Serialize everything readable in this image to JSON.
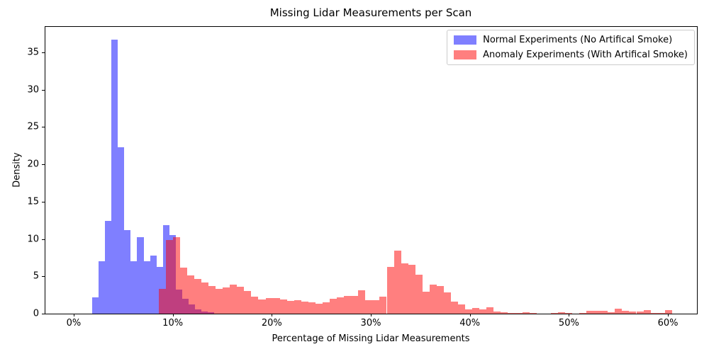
{
  "title": "Missing Lidar Measurements per Scan",
  "xlabel": "Percentage of Missing Lidar Measurements",
  "ylabel": "Density",
  "legend": {
    "items": [
      {
        "label": "Normal Experiments (No Artifical Smoke)",
        "color": "rgba(0,0,255,0.5)"
      },
      {
        "label": "Anomaly Experiments (With Artifical Smoke)",
        "color": "rgba(255,0,0,0.5)"
      }
    ]
  },
  "chart_data": {
    "type": "bar",
    "subtype": "overlapping-density-histogram",
    "title": "Missing Lidar Measurements per Scan",
    "xlabel": "Percentage of Missing Lidar Measurements",
    "ylabel": "Density",
    "xlim": [
      -2.86,
      62.93
    ],
    "ylim": [
      0,
      38.4
    ],
    "grid": false,
    "legend_position": "upper right",
    "x_tick_values": [
      0,
      10,
      20,
      30,
      40,
      50,
      60
    ],
    "x_tick_labels": [
      "0%",
      "10%",
      "20%",
      "30%",
      "40%",
      "50%",
      "60%"
    ],
    "y_tick_values": [
      0,
      5,
      10,
      15,
      20,
      25,
      30,
      35
    ],
    "y_tick_labels": [
      "0",
      "5",
      "10",
      "15",
      "20",
      "25",
      "30",
      "35"
    ],
    "series": [
      {
        "name": "Normal Experiments (No Artifical Smoke)",
        "fill": "rgba(0,0,255,0.5)",
        "base_color": "#0000ff",
        "alpha": 0.5,
        "bin_start_percent": 1.86,
        "bin_width_percent": 0.65,
        "densities": [
          2.2,
          7.0,
          12.4,
          36.7,
          22.3,
          11.2,
          7.0,
          10.2,
          7.0,
          7.8,
          6.3,
          11.9,
          10.5,
          3.2,
          2.0,
          1.2,
          0.6,
          0.3,
          0.15
        ]
      },
      {
        "name": "Anomaly Experiments (With Artifical Smoke)",
        "fill": "rgba(255,0,0,0.5)",
        "base_color": "#ff0000",
        "alpha": 0.5,
        "bin_start_percent": 8.57,
        "bin_width_percent": 0.72,
        "densities": [
          3.3,
          9.9,
          10.2,
          6.2,
          5.1,
          4.6,
          4.15,
          3.7,
          3.3,
          3.5,
          3.85,
          3.6,
          3.0,
          2.3,
          1.9,
          2.1,
          2.1,
          1.9,
          1.75,
          1.8,
          1.65,
          1.5,
          1.35,
          1.55,
          1.95,
          2.2,
          2.35,
          2.4,
          3.1,
          1.8,
          1.85,
          2.3,
          6.3,
          8.4,
          6.7,
          6.5,
          5.2,
          2.9,
          3.9,
          3.7,
          2.8,
          1.65,
          1.25,
          0.55,
          0.75,
          0.55,
          0.9,
          0.3,
          0.2,
          0.05,
          0.1,
          0.2,
          0.05,
          0,
          0,
          0.1,
          0.2,
          0.05,
          0,
          0.1,
          0.35,
          0.4,
          0.35,
          0.2,
          0.7,
          0.4,
          0.33,
          0.33,
          0.5,
          0.1,
          0.05,
          0.5
        ]
      }
    ]
  }
}
